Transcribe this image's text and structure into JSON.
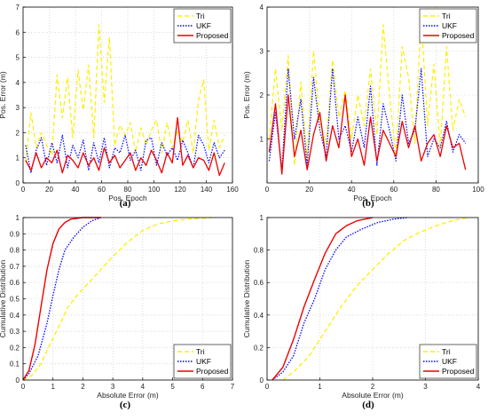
{
  "chart_data": [
    {
      "panel_label": "(a)",
      "type": "line",
      "xlabel": "Pos. Epoch",
      "ylabel": "Pos. Error (m)",
      "xlim": [
        0,
        160
      ],
      "ylim": [
        0,
        7
      ],
      "xticks": [
        0,
        20,
        40,
        60,
        80,
        100,
        120,
        140,
        160
      ],
      "yticks": [
        0,
        1,
        2,
        3,
        4,
        5,
        6,
        7
      ],
      "grid": true,
      "legend_position": "top-right",
      "x": [
        2,
        6,
        10,
        14,
        18,
        22,
        26,
        30,
        34,
        38,
        42,
        46,
        50,
        54,
        58,
        62,
        66,
        70,
        74,
        78,
        82,
        86,
        90,
        94,
        98,
        102,
        106,
        110,
        114,
        118,
        122,
        126,
        130,
        134,
        138,
        142,
        146,
        150,
        154
      ],
      "series": [
        {
          "name": "Tri",
          "color": "#ffee00",
          "dash": "5,3",
          "width": 1.2,
          "values": [
            0.8,
            2.8,
            1.4,
            2.0,
            1.5,
            1.1,
            4.3,
            2.6,
            4.2,
            1.8,
            4.5,
            2.9,
            4.7,
            1.8,
            6.3,
            3.2,
            5.8,
            1.5,
            2.3,
            1.9,
            2.4,
            1.2,
            2.2,
            1.5,
            2.1,
            2.5,
            1.2,
            2.4,
            1.4,
            2.1,
            1.6,
            2.5,
            1.2,
            3.3,
            4.1,
            1.3,
            2.5,
            1.4,
            1.9
          ]
        },
        {
          "name": "UKF",
          "color": "#0000ff",
          "dash": "1.5,1.5",
          "width": 1.2,
          "values": [
            1.5,
            0.4,
            1.3,
            1.8,
            0.7,
            1.6,
            0.8,
            1.9,
            0.6,
            1.5,
            1.0,
            1.7,
            0.5,
            1.6,
            0.8,
            1.8,
            0.6,
            1.4,
            1.2,
            1.9,
            0.9,
            1.3,
            0.5,
            1.7,
            1.8,
            0.7,
            1.6,
            1.1,
            1.4,
            0.9,
            1.7,
            1.2,
            0.6,
            1.9,
            1.5,
            0.8,
            1.6,
            1.0,
            1.3
          ]
        },
        {
          "name": "Proposed",
          "color": "#ee0000",
          "dash": "",
          "width": 1.3,
          "values": [
            0.9,
            0.5,
            1.2,
            0.6,
            1.0,
            0.8,
            1.3,
            0.4,
            1.1,
            0.9,
            0.6,
            1.2,
            0.7,
            1.0,
            0.5,
            1.4,
            0.8,
            1.1,
            0.6,
            0.9,
            1.2,
            0.5,
            1.0,
            0.7,
            1.3,
            0.9,
            0.4,
            1.2,
            0.8,
            2.6,
            0.7,
            1.1,
            0.6,
            1.0,
            0.9,
            0.5,
            1.2,
            0.3,
            0.8
          ]
        }
      ]
    },
    {
      "panel_label": "(b)",
      "type": "line",
      "xlabel": "Pos. Epoch",
      "ylabel": "Pos. Error (m)",
      "xlim": [
        0,
        100
      ],
      "ylim": [
        0,
        4
      ],
      "xticks": [
        0,
        20,
        40,
        60,
        80,
        100
      ],
      "yticks": [
        1,
        2,
        3,
        4
      ],
      "grid": true,
      "legend_position": "top-right",
      "x": [
        1,
        4,
        7,
        10,
        13,
        16,
        19,
        22,
        25,
        28,
        31,
        34,
        37,
        40,
        43,
        46,
        49,
        52,
        55,
        58,
        61,
        64,
        67,
        70,
        73,
        76,
        79,
        82,
        85,
        88,
        91,
        94
      ],
      "series": [
        {
          "name": "Tri",
          "color": "#ffee00",
          "dash": "5,3",
          "width": 1.2,
          "values": [
            1.0,
            2.6,
            1.2,
            2.9,
            0.4,
            2.3,
            0.6,
            3.0,
            1.4,
            0.9,
            2.8,
            1.5,
            2.1,
            1.0,
            2.0,
            1.3,
            2.6,
            1.1,
            3.6,
            2.0,
            0.6,
            3.1,
            2.4,
            0.9,
            3.8,
            1.3,
            2.7,
            0.8,
            3.1,
            1.2,
            1.9,
            1.5
          ]
        },
        {
          "name": "UKF",
          "color": "#0000ff",
          "dash": "1.5,1.5",
          "width": 1.2,
          "values": [
            0.5,
            1.6,
            0.3,
            2.6,
            1.0,
            1.9,
            0.4,
            2.4,
            1.2,
            0.6,
            2.6,
            1.0,
            1.3,
            0.7,
            1.5,
            0.8,
            2.2,
            0.4,
            1.8,
            1.2,
            0.5,
            2.0,
            0.9,
            1.2,
            2.6,
            0.6,
            1.0,
            0.8,
            1.4,
            0.7,
            1.1,
            0.9
          ]
        },
        {
          "name": "Proposed",
          "color": "#ee0000",
          "dash": "",
          "width": 1.3,
          "values": [
            0.7,
            1.8,
            0.2,
            2.0,
            0.6,
            1.2,
            0.3,
            1.1,
            1.6,
            0.5,
            1.3,
            0.8,
            2.0,
            0.6,
            1.0,
            0.4,
            1.5,
            0.5,
            1.2,
            0.9,
            0.6,
            1.4,
            0.8,
            1.3,
            0.5,
            0.9,
            1.1,
            0.6,
            1.3,
            0.8,
            0.9,
            0.3
          ]
        }
      ]
    },
    {
      "panel_label": "(c)",
      "type": "line",
      "xlabel": "Absolute Error (m)",
      "ylabel": "Cumulative Distribution",
      "xlim": [
        0,
        7
      ],
      "ylim": [
        0,
        1
      ],
      "xticks": [
        0,
        1,
        2,
        3,
        4,
        5,
        6,
        7
      ],
      "yticks": [
        0,
        0.1,
        0.2,
        0.3,
        0.4,
        0.5,
        0.6,
        0.7,
        0.8,
        0.9,
        1
      ],
      "grid": true,
      "legend_position": "bottom-right",
      "series": [
        {
          "name": "Tri",
          "color": "#ffee00",
          "dash": "5,3",
          "width": 1.3,
          "points": [
            [
              0,
              0
            ],
            [
              0.3,
              0.03
            ],
            [
              0.6,
              0.1
            ],
            [
              0.9,
              0.22
            ],
            [
              1.2,
              0.33
            ],
            [
              1.5,
              0.45
            ],
            [
              1.8,
              0.52
            ],
            [
              2.2,
              0.6
            ],
            [
              2.6,
              0.68
            ],
            [
              3.0,
              0.76
            ],
            [
              3.5,
              0.85
            ],
            [
              4.0,
              0.92
            ],
            [
              4.5,
              0.96
            ],
            [
              5.0,
              0.98
            ],
            [
              5.5,
              0.99
            ],
            [
              6.3,
              1.0
            ]
          ]
        },
        {
          "name": "UKF",
          "color": "#0000ff",
          "dash": "1.5,1.5",
          "width": 1.3,
          "points": [
            [
              0,
              0
            ],
            [
              0.2,
              0.04
            ],
            [
              0.5,
              0.15
            ],
            [
              0.8,
              0.35
            ],
            [
              1.0,
              0.52
            ],
            [
              1.2,
              0.68
            ],
            [
              1.4,
              0.8
            ],
            [
              1.7,
              0.88
            ],
            [
              2.0,
              0.94
            ],
            [
              2.3,
              0.98
            ],
            [
              2.6,
              1.0
            ]
          ]
        },
        {
          "name": "Proposed",
          "color": "#ee0000",
          "dash": "",
          "width": 1.4,
          "points": [
            [
              0,
              0
            ],
            [
              0.2,
              0.06
            ],
            [
              0.4,
              0.22
            ],
            [
              0.6,
              0.45
            ],
            [
              0.8,
              0.68
            ],
            [
              1.0,
              0.84
            ],
            [
              1.2,
              0.93
            ],
            [
              1.4,
              0.97
            ],
            [
              1.6,
              0.99
            ],
            [
              2.0,
              1.0
            ],
            [
              2.6,
              1.0
            ]
          ]
        }
      ]
    },
    {
      "panel_label": "(d)",
      "type": "line",
      "xlabel": "Absolute Error (m)",
      "ylabel": "Cumulative Distribution",
      "xlim": [
        0,
        4
      ],
      "ylim": [
        0,
        1
      ],
      "xticks": [
        0,
        1,
        2,
        3,
        4
      ],
      "yticks": [
        0,
        0.2,
        0.4,
        0.6,
        0.8,
        1
      ],
      "grid": true,
      "legend_position": "bottom-right",
      "series": [
        {
          "name": "Tri",
          "color": "#ffee00",
          "dash": "5,3",
          "width": 1.3,
          "points": [
            [
              0.3,
              0
            ],
            [
              0.5,
              0.05
            ],
            [
              0.8,
              0.15
            ],
            [
              1.1,
              0.3
            ],
            [
              1.4,
              0.45
            ],
            [
              1.7,
              0.58
            ],
            [
              2.0,
              0.68
            ],
            [
              2.3,
              0.78
            ],
            [
              2.6,
              0.86
            ],
            [
              2.9,
              0.91
            ],
            [
              3.2,
              0.95
            ],
            [
              3.5,
              0.98
            ],
            [
              3.8,
              1.0
            ]
          ]
        },
        {
          "name": "UKF",
          "color": "#0000ff",
          "dash": "1.5,1.5",
          "width": 1.3,
          "points": [
            [
              0.1,
              0
            ],
            [
              0.3,
              0.05
            ],
            [
              0.5,
              0.15
            ],
            [
              0.7,
              0.35
            ],
            [
              0.9,
              0.5
            ],
            [
              1.1,
              0.68
            ],
            [
              1.3,
              0.8
            ],
            [
              1.5,
              0.88
            ],
            [
              1.8,
              0.93
            ],
            [
              2.1,
              0.97
            ],
            [
              2.4,
              0.99
            ],
            [
              2.65,
              1.0
            ]
          ]
        },
        {
          "name": "Proposed",
          "color": "#ee0000",
          "dash": "",
          "width": 1.4,
          "points": [
            [
              0.1,
              0
            ],
            [
              0.3,
              0.08
            ],
            [
              0.5,
              0.25
            ],
            [
              0.7,
              0.45
            ],
            [
              0.9,
              0.62
            ],
            [
              1.1,
              0.78
            ],
            [
              1.3,
              0.9
            ],
            [
              1.5,
              0.95
            ],
            [
              1.7,
              0.98
            ],
            [
              2.0,
              1.0
            ]
          ]
        }
      ]
    }
  ]
}
